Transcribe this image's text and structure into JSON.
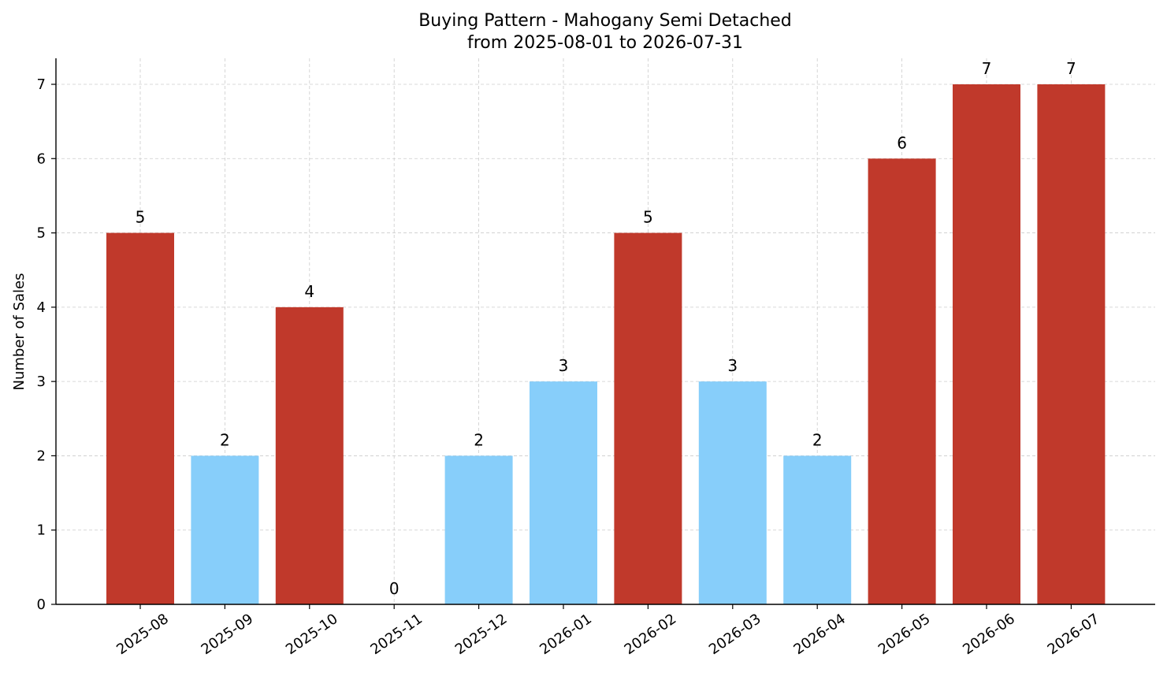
{
  "chart_data": {
    "type": "bar",
    "title": "Buying Pattern - Mahogany Semi Detached",
    "subtitle": "from 2025-08-01 to 2026-07-31",
    "xlabel": "",
    "ylabel": "Number of Sales",
    "categories": [
      "2025-08",
      "2025-09",
      "2025-10",
      "2025-11",
      "2025-12",
      "2026-01",
      "2026-02",
      "2026-03",
      "2026-04",
      "2026-05",
      "2026-06",
      "2026-07"
    ],
    "values": [
      5,
      2,
      4,
      0,
      2,
      3,
      5,
      3,
      2,
      6,
      7,
      7
    ],
    "bar_colors": [
      "#c0392b",
      "#87cefa",
      "#c0392b",
      "#87cefa",
      "#87cefa",
      "#87cefa",
      "#c0392b",
      "#87cefa",
      "#87cefa",
      "#c0392b",
      "#c0392b",
      "#c0392b"
    ],
    "ylim": [
      0,
      7.35
    ],
    "yticks": [
      0,
      1,
      2,
      3,
      4,
      5,
      6,
      7
    ],
    "grid": true,
    "legend": "none"
  }
}
